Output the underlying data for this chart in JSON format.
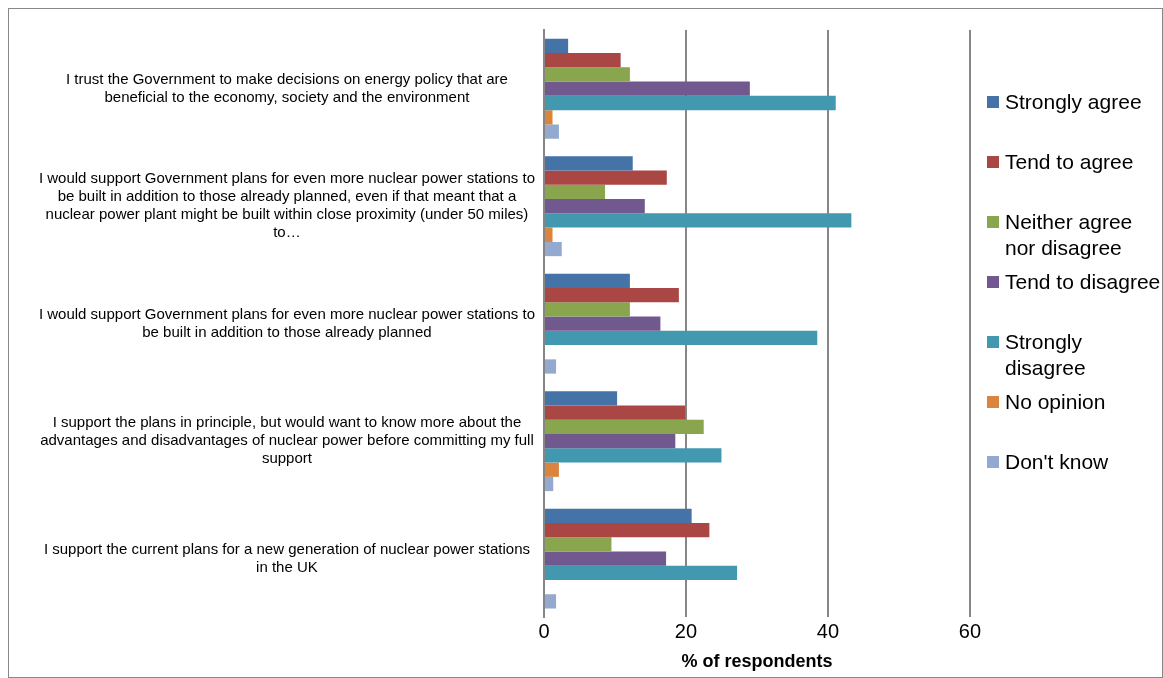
{
  "chart_data": {
    "type": "bar",
    "orientation": "horizontal",
    "xlabel": "% of respondents",
    "categories": [
      "I trust the Government to make decisions on energy policy that are beneficial to the economy, society and the environment",
      "I would support Government plans for even more nuclear power stations to be built in addition to those already planned, even if that meant that a nuclear power plant might be built within close proximity (under 50 miles) to…",
      "I would support Government plans for even more nuclear power stations to be built in addition to those already planned",
      "I support the plans in principle, but would want to know more about the advantages and disadvantages of nuclear power before committing my full support",
      "I support the current plans for a new generation of nuclear power stations in the UK"
    ],
    "series": [
      {
        "name": "Strongly agree",
        "color": "#4572a7",
        "values": [
          3.4,
          12.5,
          12.1,
          10.3,
          20.8
        ]
      },
      {
        "name": "Tend to agree",
        "color": "#aa4643",
        "values": [
          10.8,
          17.3,
          19.0,
          19.9,
          23.3
        ]
      },
      {
        "name": "Neither agree nor disagree",
        "color": "#89a54e",
        "values": [
          12.1,
          8.6,
          12.1,
          22.5,
          9.5
        ]
      },
      {
        "name": "Tend to disagree",
        "color": "#71588f",
        "values": [
          29.0,
          14.2,
          16.4,
          18.5,
          17.2
        ]
      },
      {
        "name": "Strongly disagree",
        "color": "#4198af",
        "values": [
          41.1,
          43.3,
          38.5,
          25.0,
          27.2
        ]
      },
      {
        "name": "No opinion",
        "color": "#db843d",
        "values": [
          1.2,
          1.2,
          null,
          2.1,
          null
        ]
      },
      {
        "name": "Don't know",
        "color": "#93a9cf",
        "values": [
          2.1,
          2.5,
          1.7,
          1.3,
          1.7
        ]
      }
    ],
    "xlim": [
      0,
      60
    ],
    "xticks": [
      0,
      20,
      40,
      60
    ],
    "grid": "x",
    "legend": "right"
  }
}
